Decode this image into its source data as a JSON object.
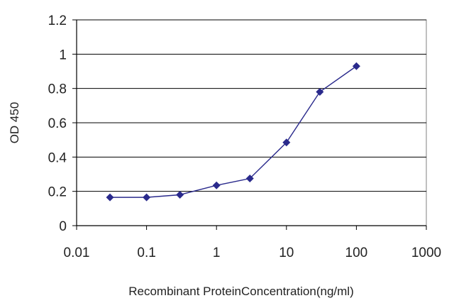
{
  "chart_data": {
    "type": "line",
    "title": "",
    "xlabel": "Recombinant ProteinConcentration(ng/ml)",
    "ylabel": "OD 450",
    "x_scale": "log",
    "xlim": [
      0.01,
      1000
    ],
    "ylim": [
      0,
      1.2
    ],
    "x_ticks": [
      "0.01",
      "0.1",
      "1",
      "10",
      "100",
      "1000"
    ],
    "y_ticks": [
      "0",
      "0.2",
      "0.4",
      "0.6",
      "0.8",
      "1",
      "1.2"
    ],
    "grid": "horizontal",
    "legend": "none",
    "series": [
      {
        "color": "#2a2a8c",
        "marker": "diamond",
        "x": [
          0.03,
          0.1,
          0.3,
          1,
          3,
          10,
          30,
          100
        ],
        "y": [
          0.165,
          0.165,
          0.18,
          0.235,
          0.275,
          0.485,
          0.78,
          0.93
        ]
      }
    ]
  }
}
